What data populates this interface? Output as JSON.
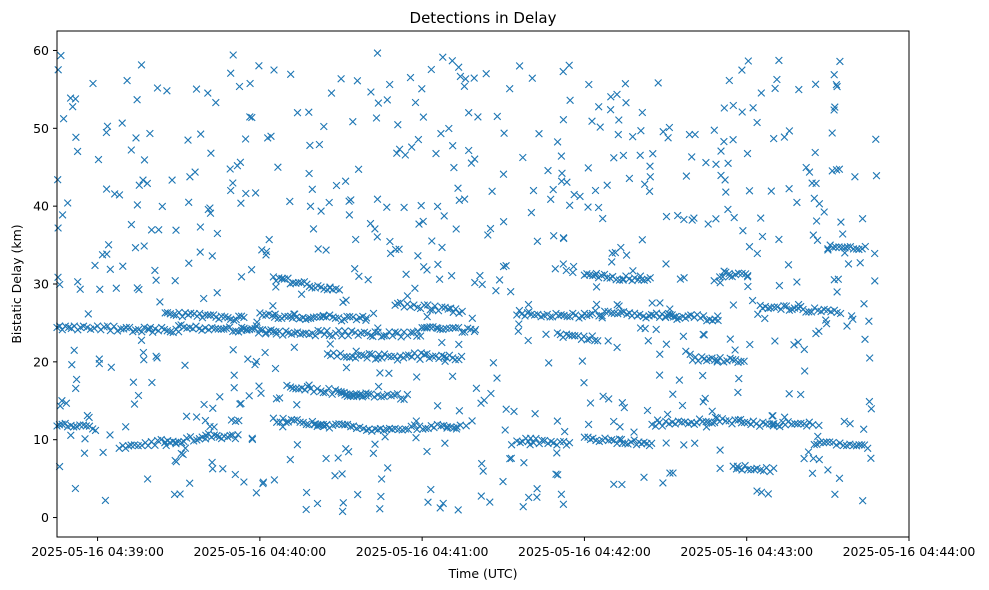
{
  "chart_data": {
    "type": "scatter",
    "title": "Detections in Delay",
    "xlabel": "Time (UTC)",
    "ylabel": "Bistatic Delay (km)",
    "marker": "x",
    "color": "#1f77b4",
    "x_ticks": [
      "2025-05-16 04:39:00",
      "2025-05-16 04:40:00",
      "2025-05-16 04:41:00",
      "2025-05-16 04:42:00",
      "2025-05-16 04:43:00",
      "2025-05-16 04:44:00"
    ],
    "y_ticks": [
      "0",
      "10",
      "20",
      "30",
      "40",
      "50",
      "60"
    ],
    "xlim": [
      "2025-05-16 04:38:45",
      "2025-05-16 04:44:00"
    ],
    "ylim": [
      -2.5,
      62.5
    ],
    "grid": false,
    "tracks": [
      {
        "start": "2025-05-16 04:38:45",
        "end": "2025-05-16 04:39:30",
        "y_start": 24.5,
        "y_end": 24.0
      },
      {
        "start": "2025-05-16 04:39:25",
        "end": "2025-05-16 04:39:55",
        "y_start": 26.3,
        "y_end": 25.5
      },
      {
        "start": "2025-05-16 04:39:30",
        "end": "2025-05-16 04:40:00",
        "y_start": 24.5,
        "y_end": 24.0
      },
      {
        "start": "2025-05-16 04:40:00",
        "end": "2025-05-16 04:40:40",
        "y_start": 26.0,
        "y_end": 25.5
      },
      {
        "start": "2025-05-16 04:40:00",
        "end": "2025-05-16 04:41:00",
        "y_start": 23.8,
        "y_end": 23.5
      },
      {
        "start": "2025-05-16 04:40:05",
        "end": "2025-05-16 04:40:30",
        "y_start": 30.8,
        "y_end": 29.0
      },
      {
        "start": "2025-05-16 04:40:10",
        "end": "2025-05-16 04:40:40",
        "y_start": 17.0,
        "y_end": 15.5
      },
      {
        "start": "2025-05-16 04:40:30",
        "end": "2025-05-16 04:40:55",
        "y_start": 15.8,
        "y_end": 15.5
      },
      {
        "start": "2025-05-16 04:40:25",
        "end": "2025-05-16 04:40:55",
        "y_start": 21.0,
        "y_end": 20.5
      },
      {
        "start": "2025-05-16 04:40:55",
        "end": "2025-05-16 04:41:15",
        "y_start": 21.0,
        "y_end": 20.5
      },
      {
        "start": "2025-05-16 04:40:50",
        "end": "2025-05-16 04:41:15",
        "y_start": 27.5,
        "y_end": 26.5
      },
      {
        "start": "2025-05-16 04:41:00",
        "end": "2025-05-16 04:41:20",
        "y_start": 24.5,
        "y_end": 24.0
      },
      {
        "start": "2025-05-16 04:41:35",
        "end": "2025-05-16 04:42:00",
        "y_start": 26.3,
        "y_end": 25.8
      },
      {
        "start": "2025-05-16 04:41:50",
        "end": "2025-05-16 04:42:05",
        "y_start": 23.5,
        "y_end": 23.0
      },
      {
        "start": "2025-05-16 04:42:00",
        "end": "2025-05-16 04:42:25",
        "y_start": 31.2,
        "y_end": 30.5
      },
      {
        "start": "2025-05-16 04:42:00",
        "end": "2025-05-16 04:42:35",
        "y_start": 26.3,
        "y_end": 25.8
      },
      {
        "start": "2025-05-16 04:42:30",
        "end": "2025-05-16 04:42:50",
        "y_start": 26.0,
        "y_end": 25.5
      },
      {
        "start": "2025-05-16 04:42:50",
        "end": "2025-05-16 04:43:00",
        "y_start": 31.2,
        "y_end": 31.0
      },
      {
        "start": "2025-05-16 04:42:40",
        "end": "2025-05-16 04:43:00",
        "y_start": 20.5,
        "y_end": 20.0
      },
      {
        "start": "2025-05-16 04:43:05",
        "end": "2025-05-16 04:43:35",
        "y_start": 27.0,
        "y_end": 26.5
      },
      {
        "start": "2025-05-16 04:43:30",
        "end": "2025-05-16 04:43:45",
        "y_start": 34.8,
        "y_end": 34.5
      },
      {
        "start": "2025-05-16 04:38:45",
        "end": "2025-05-16 04:39:00",
        "y_start": 12.0,
        "y_end": 11.5
      },
      {
        "start": "2025-05-16 04:39:08",
        "end": "2025-05-16 04:39:25",
        "y_start": 9.0,
        "y_end": 9.8
      },
      {
        "start": "2025-05-16 04:39:25",
        "end": "2025-05-16 04:39:40",
        "y_start": 9.8,
        "y_end": 10.2
      },
      {
        "start": "2025-05-16 04:39:40",
        "end": "2025-05-16 04:39:53",
        "y_start": 10.5,
        "y_end": 10.3
      },
      {
        "start": "2025-05-16 04:40:05",
        "end": "2025-05-16 04:40:25",
        "y_start": 12.5,
        "y_end": 12.0
      },
      {
        "start": "2025-05-16 04:40:20",
        "end": "2025-05-16 04:40:50",
        "y_start": 12.0,
        "y_end": 11.2
      },
      {
        "start": "2025-05-16 04:40:50",
        "end": "2025-05-16 04:41:15",
        "y_start": 11.5,
        "y_end": 11.8
      },
      {
        "start": "2025-05-16 04:41:35",
        "end": "2025-05-16 04:41:55",
        "y_start": 10.0,
        "y_end": 9.5
      },
      {
        "start": "2025-05-16 04:42:00",
        "end": "2025-05-16 04:42:25",
        "y_start": 10.0,
        "y_end": 9.5
      },
      {
        "start": "2025-05-16 04:42:25",
        "end": "2025-05-16 04:42:50",
        "y_start": 12.0,
        "y_end": 12.5
      },
      {
        "start": "2025-05-16 04:42:50",
        "end": "2025-05-16 04:43:10",
        "y_start": 12.5,
        "y_end": 11.8
      },
      {
        "start": "2025-05-16 04:43:10",
        "end": "2025-05-16 04:43:25",
        "y_start": 12.0,
        "y_end": 12.0
      },
      {
        "start": "2025-05-16 04:43:25",
        "end": "2025-05-16 04:43:45",
        "y_start": 9.5,
        "y_end": 9.0
      },
      {
        "start": "2025-05-16 04:42:55",
        "end": "2025-05-16 04:43:10",
        "y_start": 6.5,
        "y_end": 6.0
      }
    ],
    "clutter": {
      "start": "2025-05-16 04:38:45",
      "end": "2025-05-16 04:43:48",
      "y_min": 0.5,
      "y_max": 60,
      "count": 700
    }
  }
}
